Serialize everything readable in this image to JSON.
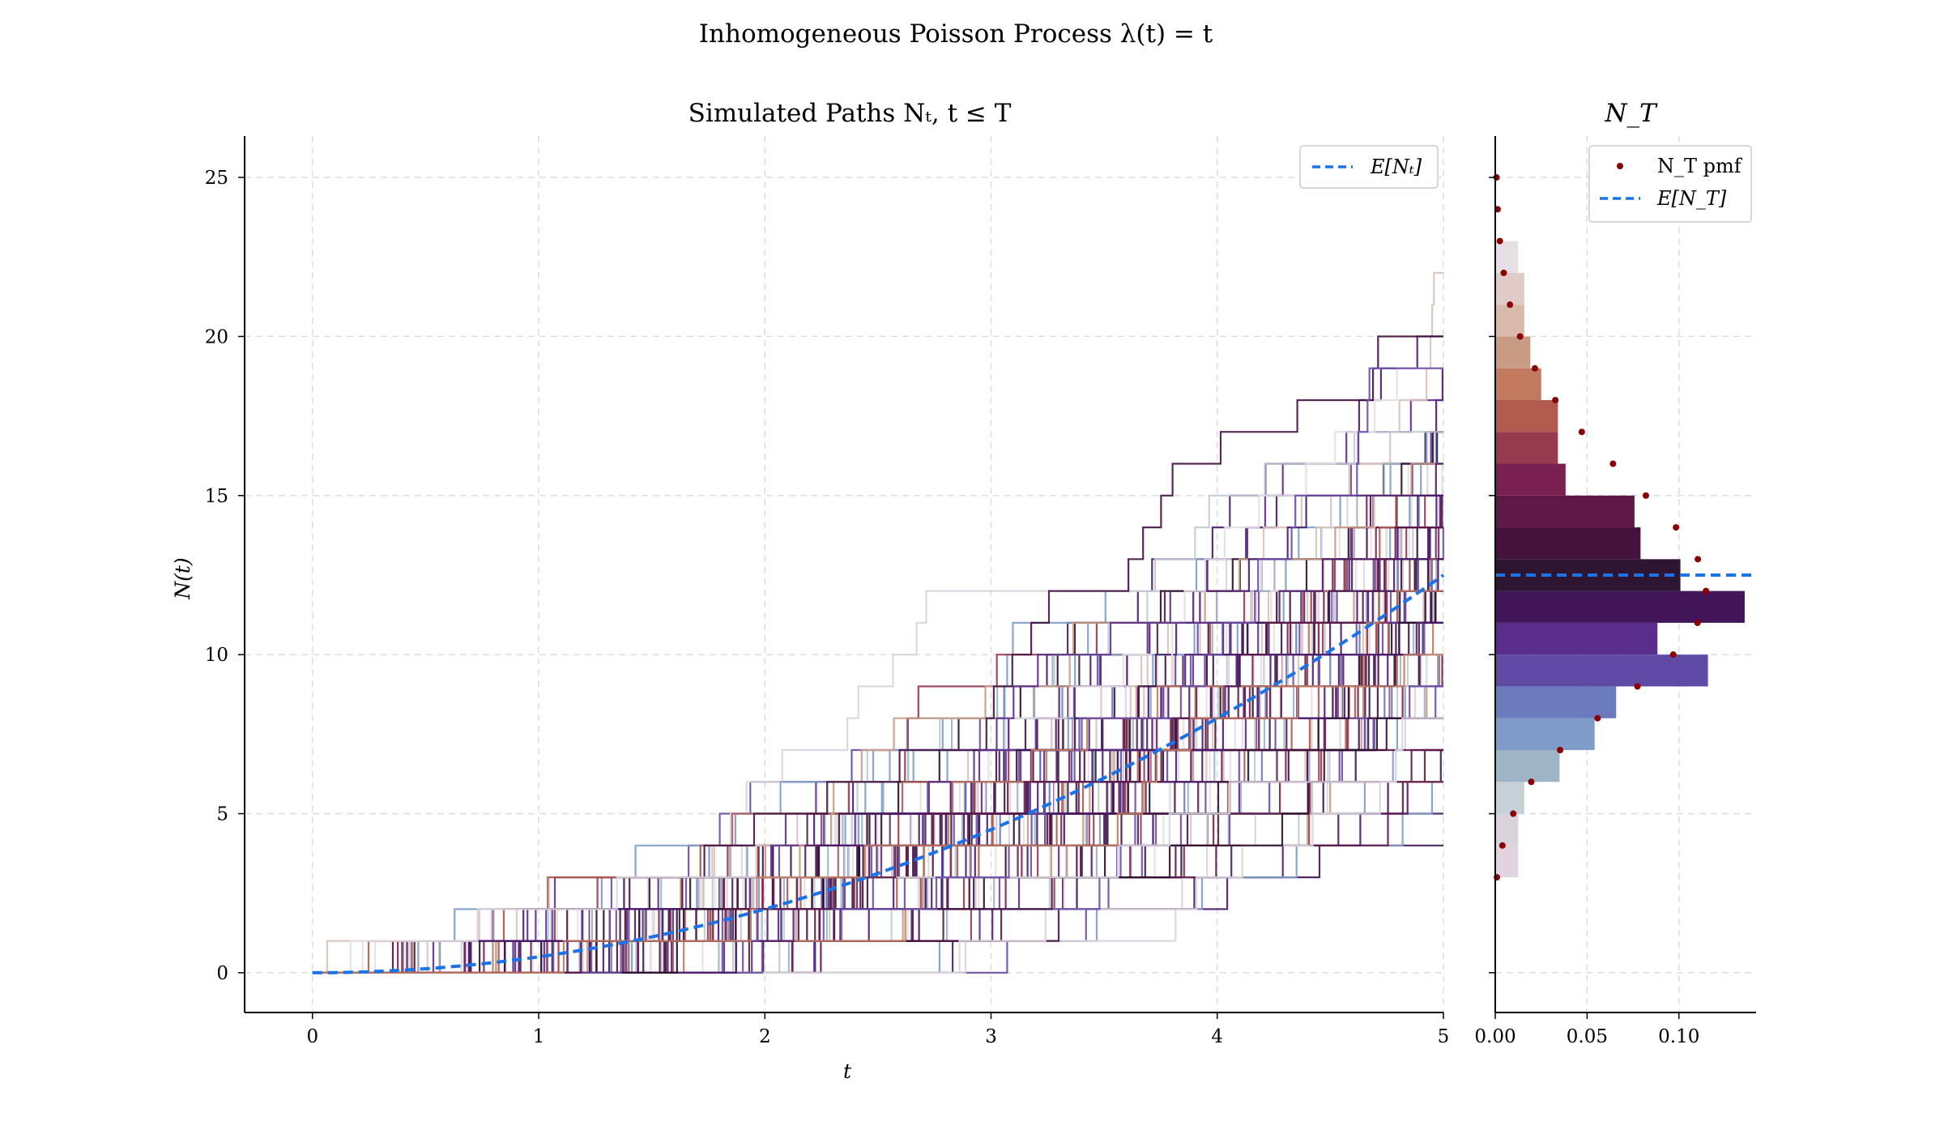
{
  "figure": {
    "suptitle": "Inhomogeneous Poisson Process λ(t) = t"
  },
  "chart_data": [
    {
      "type": "line",
      "title": "Simulated Paths Nₜ, t ≤ T",
      "xlabel": "t",
      "ylabel": "N(t)",
      "xlim": [
        -0.3,
        5
      ],
      "ylim": [
        -1.25,
        26.3
      ],
      "xticks": [
        0,
        1,
        2,
        3,
        4,
        5
      ],
      "yticks": [
        0,
        5,
        10,
        15,
        20,
        25
      ],
      "grid": true,
      "legend_position": "top-right",
      "series": [
        {
          "name": "E[Nₜ]",
          "style": "dashed",
          "color": "#1a73e8",
          "formula": "t^2/2",
          "x": [
            0,
            0.5,
            1,
            1.5,
            2,
            2.5,
            3,
            3.5,
            4,
            4.5,
            5
          ],
          "values": [
            0,
            0.125,
            0.5,
            1.125,
            2,
            3.125,
            4.5,
            6.125,
            8,
            10.125,
            12.5
          ]
        }
      ],
      "simulated_paths": {
        "description_count": 120,
        "kind": "step",
        "final_value_range": [
          3,
          22
        ]
      }
    },
    {
      "type": "bar",
      "orientation": "horizontal",
      "title": "N_T",
      "xlim": [
        0,
        0.142
      ],
      "ylim": [
        -1.25,
        26.3
      ],
      "xticks": [
        0.0,
        0.05,
        0.1
      ],
      "xtick_labels": [
        "0.00",
        "0.05",
        "0.10"
      ],
      "grid": true,
      "legend_position": "top-right",
      "categories": [
        3,
        4,
        5,
        6,
        7,
        8,
        9,
        10,
        11,
        12,
        13,
        14,
        15,
        16,
        17,
        18,
        19,
        20,
        21,
        22
      ],
      "values": [
        0.0125,
        0.0125,
        0.0158,
        0.035,
        0.0541,
        0.0658,
        0.1158,
        0.0883,
        0.1358,
        0.1008,
        0.0791,
        0.0758,
        0.0383,
        0.0341,
        0.0341,
        0.025,
        0.0191,
        0.0158,
        0.0158,
        0.0125
      ],
      "series": [
        {
          "name": "N_T pmf",
          "type": "scatter",
          "color": "#8b0000",
          "x": [
            3,
            4,
            5,
            6,
            7,
            8,
            9,
            10,
            11,
            12,
            13,
            14,
            15,
            16,
            17,
            18,
            19,
            20,
            21,
            22,
            23,
            24,
            25
          ],
          "values": [
            0.0009,
            0.0039,
            0.0098,
            0.0196,
            0.0353,
            0.0557,
            0.0774,
            0.0969,
            0.1101,
            0.1147,
            0.1103,
            0.0984,
            0.082,
            0.0641,
            0.0471,
            0.0327,
            0.0216,
            0.0135,
            0.008,
            0.0046,
            0.0025,
            0.0013,
            0.0007
          ]
        },
        {
          "name": "E[N_T]",
          "style": "dashed",
          "color": "#1a73e8",
          "value": 12.5
        }
      ]
    }
  ]
}
